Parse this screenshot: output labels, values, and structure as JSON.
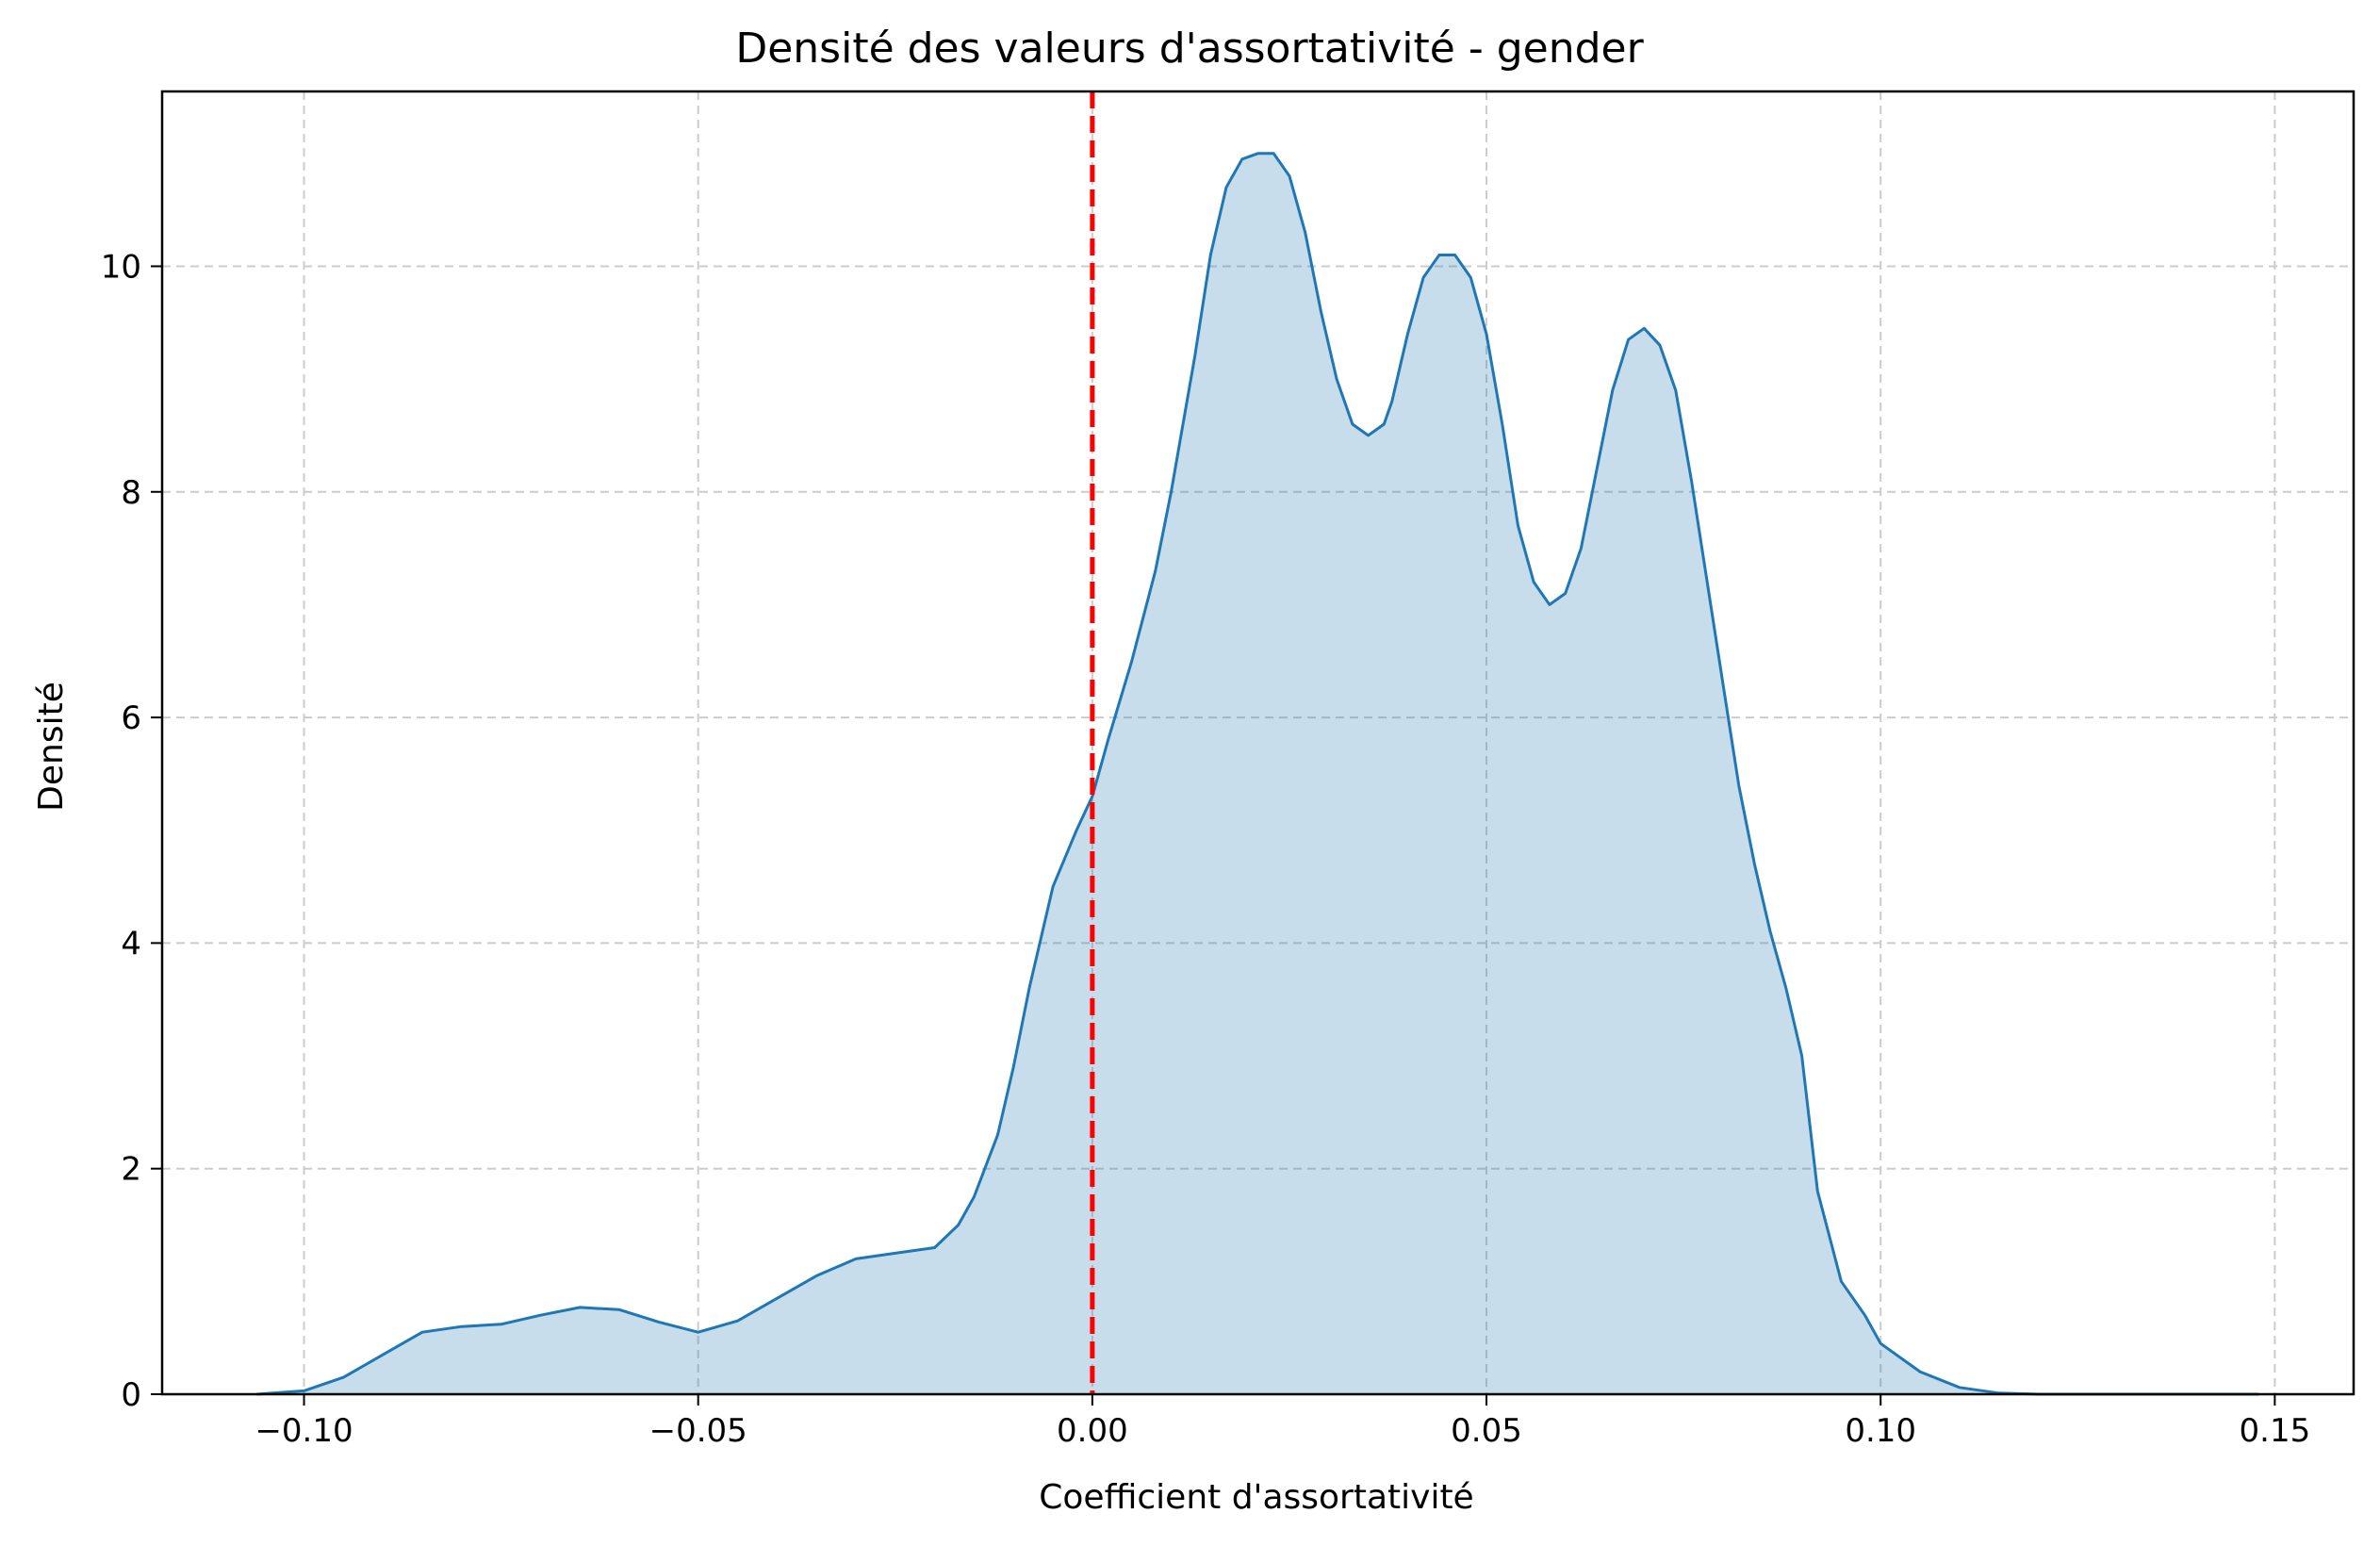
{
  "chart_data": {
    "type": "area",
    "title": "Densité des valeurs d'assortativité - gender",
    "xlabel": "Coefficient d'assortativité",
    "ylabel": "Densité",
    "xlim": [
      -0.118,
      0.16
    ],
    "ylim": [
      0,
      11.55
    ],
    "x_ticks": [
      -0.1,
      -0.05,
      0.0,
      0.05,
      0.1,
      0.15
    ],
    "x_tick_labels": [
      "−0.10",
      "−0.05",
      "0.00",
      "0.05",
      "0.10",
      "0.15"
    ],
    "y_ticks": [
      0,
      2,
      4,
      6,
      8,
      10
    ],
    "y_tick_labels": [
      "0",
      "2",
      "4",
      "6",
      "8",
      "10"
    ],
    "grid": true,
    "reference_line": {
      "x": 0.0,
      "style": "dashed",
      "color": "#ff0000"
    },
    "colors": {
      "line": "#1f77b4",
      "fill": "#1f77b4",
      "fill_opacity": 0.25,
      "grid": "#cccccc"
    },
    "series": [
      {
        "x": [
          -0.106,
          -0.1,
          -0.095,
          -0.09,
          -0.085,
          -0.08,
          -0.075,
          -0.07,
          -0.065,
          -0.06,
          -0.055,
          -0.05,
          -0.045,
          -0.04,
          -0.035,
          -0.03,
          -0.025,
          -0.02,
          -0.017,
          -0.015,
          -0.012,
          -0.01,
          -0.008,
          -0.005,
          -0.002,
          0.0,
          0.002,
          0.005,
          0.008,
          0.01,
          0.013,
          0.015,
          0.017,
          0.019,
          0.021,
          0.023,
          0.025,
          0.027,
          0.029,
          0.031,
          0.033,
          0.035,
          0.037,
          0.038,
          0.04,
          0.042,
          0.044,
          0.046,
          0.048,
          0.05,
          0.052,
          0.054,
          0.056,
          0.058,
          0.06,
          0.062,
          0.064,
          0.066,
          0.068,
          0.07,
          0.072,
          0.074,
          0.076,
          0.078,
          0.08,
          0.082,
          0.084,
          0.086,
          0.088,
          0.09,
          0.092,
          0.095,
          0.098,
          0.1,
          0.105,
          0.11,
          0.115,
          0.12,
          0.125,
          0.13,
          0.135,
          0.14,
          0.145,
          0.148
        ],
        "y": [
          0.0,
          0.03,
          0.15,
          0.35,
          0.55,
          0.6,
          0.62,
          0.7,
          0.77,
          0.75,
          0.64,
          0.55,
          0.65,
          0.85,
          1.05,
          1.2,
          1.25,
          1.3,
          1.5,
          1.75,
          2.3,
          2.9,
          3.6,
          4.5,
          5.0,
          5.3,
          5.8,
          6.5,
          7.3,
          8.0,
          9.2,
          10.1,
          10.7,
          10.95,
          11.0,
          11.0,
          10.8,
          10.3,
          9.6,
          9.0,
          8.6,
          8.5,
          8.6,
          8.8,
          9.4,
          9.9,
          10.1,
          10.1,
          9.9,
          9.4,
          8.6,
          7.7,
          7.2,
          7.0,
          7.1,
          7.5,
          8.2,
          8.9,
          9.35,
          9.45,
          9.3,
          8.9,
          8.1,
          7.2,
          6.3,
          5.4,
          4.7,
          4.1,
          3.6,
          3.0,
          1.8,
          1.0,
          0.7,
          0.45,
          0.2,
          0.06,
          0.01,
          0.0,
          0.0,
          0.0,
          0.0,
          0.0,
          0.0,
          0.0
        ]
      }
    ]
  }
}
